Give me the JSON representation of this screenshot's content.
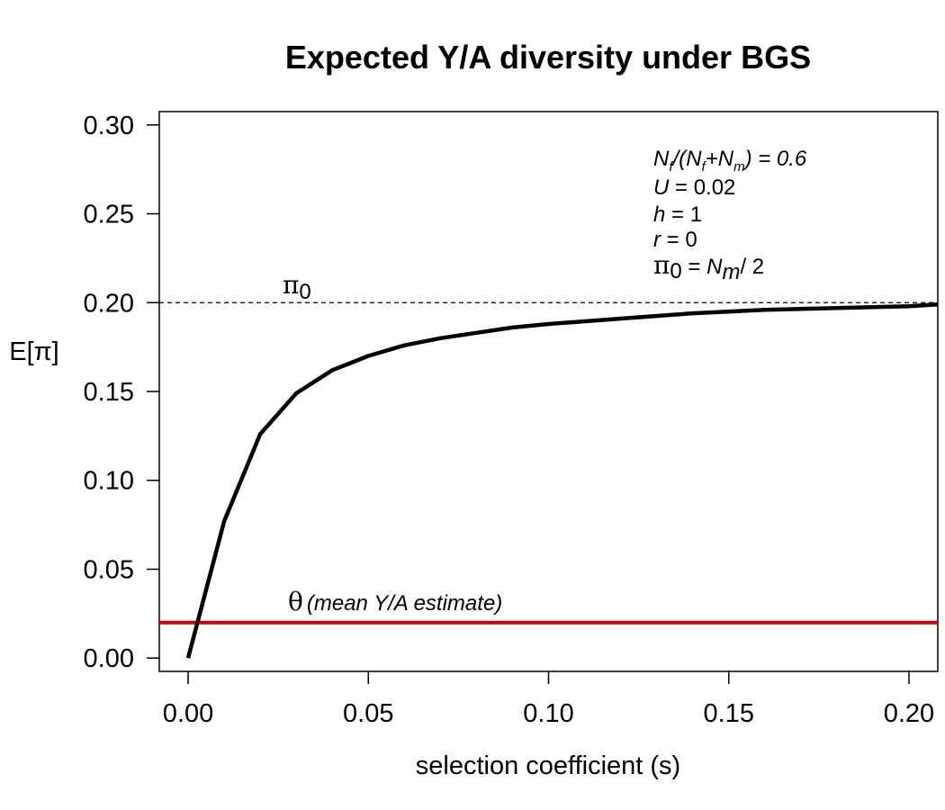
{
  "chart_data": {
    "type": "line",
    "title": "Expected Y/A diversity under BGS",
    "xlabel": "selection coefficient (s)",
    "ylabel": "E[π]",
    "xlim": [
      -0.008,
      0.208
    ],
    "ylim": [
      -0.0075,
      0.3075
    ],
    "xticks": [
      "0.00",
      "0.05",
      "0.10",
      "0.15",
      "0.20"
    ],
    "yticks": [
      "0.00",
      "0.05",
      "0.10",
      "0.15",
      "0.20",
      "0.25",
      "0.30"
    ],
    "grid": false,
    "series": [
      {
        "color": "#000000",
        "x": [
          0.0,
          0.01,
          0.02,
          0.03,
          0.04,
          0.05,
          0.06,
          0.07,
          0.08,
          0.09,
          0.1,
          0.12,
          0.14,
          0.16,
          0.18,
          0.2,
          0.208
        ],
        "y": [
          0.0,
          0.077,
          0.126,
          0.149,
          0.162,
          0.17,
          0.176,
          0.18,
          0.183,
          0.186,
          0.188,
          0.191,
          0.194,
          0.196,
          0.197,
          0.198,
          0.199
        ]
      }
    ],
    "reference_lines": [
      {
        "y": 0.2,
        "style": "dashed",
        "color": "#000000",
        "label": "π",
        "label_sub": "0"
      },
      {
        "y": 0.02,
        "style": "solid",
        "color": "#cc0000",
        "label": "θ",
        "label_paren": "(mean Y/A estimate)"
      }
    ],
    "annotations": {
      "ratio": {
        "n1": "N",
        "s1": "f",
        "t1": "/(",
        "n2": "N",
        "s2": "f",
        "t2": "+",
        "n3": "N",
        "s3": "m",
        "t3": ") = 0.6"
      },
      "u": {
        "var": "U",
        "rest": " = 0.02"
      },
      "h": {
        "var": "h",
        "rest": " = 1"
      },
      "r": {
        "var": "r",
        "rest": " = 0"
      },
      "pi0": {
        "sym": "π",
        "sub": "0",
        "eq": " = ",
        "var": "N",
        "sub2": "m",
        "rest": "/  2"
      }
    }
  }
}
